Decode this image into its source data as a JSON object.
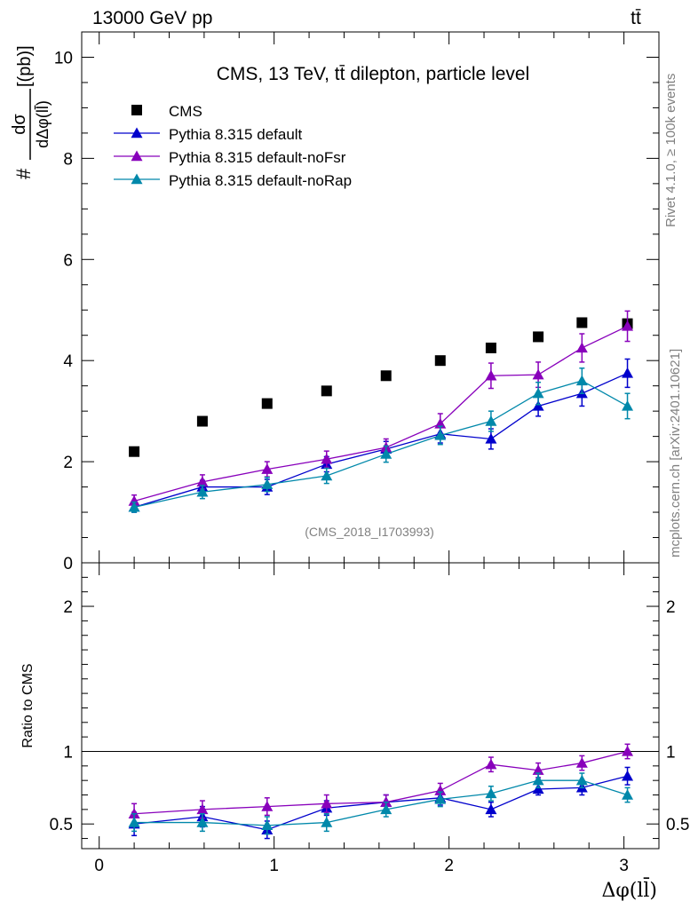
{
  "header": {
    "left": "13000 GeV pp",
    "right": "tt̄"
  },
  "side_labels": {
    "rivet": "Rivet 4.1.0, ≥ 100k events",
    "mcplots": "mcplots.cern.ch [arXiv:2401.10621]"
  },
  "chart_data": {
    "type": "scatter",
    "title": "CMS, 13 TeV, tt̄ dilepton, particle level",
    "watermark": "(CMS_2018_I1703993)",
    "xlabel": "Δφ(ll̄)",
    "ylabel": {
      "prefix": "#",
      "numerator": "dσ",
      "denominator": "dΔφ(ll̄)",
      "unit": "[(pb)]"
    },
    "ratio_ylabel": "Ratio to CMS",
    "xlim": [
      -0.1,
      3.2
    ],
    "ylim": [
      0,
      10.5
    ],
    "ratio_ylim": [
      0.33,
      2.3
    ],
    "xticks": [
      0,
      1,
      2,
      3
    ],
    "yticks": [
      0,
      2,
      4,
      6,
      8,
      10
    ],
    "ratio_yticks": [
      0.5,
      1,
      2
    ],
    "x": [
      0.2,
      0.59,
      0.96,
      1.3,
      1.64,
      1.95,
      2.24,
      2.51,
      2.76,
      3.02
    ],
    "series": [
      {
        "name": "CMS",
        "color": "#000000",
        "marker": "square",
        "values": [
          2.2,
          2.8,
          3.15,
          3.4,
          3.7,
          4.0,
          4.25,
          4.47,
          4.75,
          4.73
        ],
        "errors": [
          0,
          0,
          0,
          0,
          0,
          0,
          0,
          0,
          0,
          0
        ],
        "ratio": [
          1,
          1,
          1,
          1,
          1,
          1,
          1,
          1,
          1,
          1
        ],
        "ratio_errors": [
          0,
          0,
          0,
          0,
          0,
          0,
          0,
          0,
          0,
          0
        ]
      },
      {
        "name": "Pythia 8.315 default",
        "color": "#0000cc",
        "marker": "triangle",
        "values": [
          1.1,
          1.5,
          1.5,
          1.95,
          2.25,
          2.55,
          2.45,
          3.1,
          3.35,
          3.75
        ],
        "errors": [
          0.1,
          0.13,
          0.15,
          0.15,
          0.15,
          0.18,
          0.2,
          0.2,
          0.25,
          0.28
        ],
        "ratio": [
          0.5,
          0.55,
          0.46,
          0.61,
          0.65,
          0.68,
          0.6,
          0.74,
          0.75,
          0.83
        ],
        "ratio_errors": [
          0.08,
          0.07,
          0.06,
          0.05,
          0.05,
          0.05,
          0.05,
          0.04,
          0.05,
          0.06
        ]
      },
      {
        "name": "Pythia 8.315 default-noFsr",
        "color": "#8800bb",
        "marker": "triangle",
        "values": [
          1.22,
          1.6,
          1.85,
          2.05,
          2.28,
          2.75,
          3.7,
          3.72,
          4.25,
          4.68
        ],
        "errors": [
          0.12,
          0.14,
          0.15,
          0.16,
          0.17,
          0.2,
          0.25,
          0.25,
          0.28,
          0.3
        ],
        "ratio": [
          0.57,
          0.6,
          0.62,
          0.64,
          0.65,
          0.73,
          0.91,
          0.87,
          0.92,
          1.0
        ],
        "ratio_errors": [
          0.07,
          0.06,
          0.06,
          0.06,
          0.05,
          0.05,
          0.05,
          0.05,
          0.05,
          0.05
        ]
      },
      {
        "name": "Pythia 8.315 default-noRap",
        "color": "#0088aa",
        "marker": "triangle",
        "values": [
          1.1,
          1.4,
          1.55,
          1.72,
          2.15,
          2.52,
          2.8,
          3.35,
          3.6,
          3.1
        ],
        "errors": [
          0.1,
          0.13,
          0.14,
          0.15,
          0.16,
          0.18,
          0.2,
          0.22,
          0.25,
          0.25
        ],
        "ratio": [
          0.51,
          0.51,
          0.49,
          0.51,
          0.6,
          0.67,
          0.71,
          0.8,
          0.8,
          0.7
        ],
        "ratio_errors": [
          0.06,
          0.06,
          0.06,
          0.06,
          0.05,
          0.05,
          0.05,
          0.05,
          0.05,
          0.05
        ]
      }
    ]
  }
}
